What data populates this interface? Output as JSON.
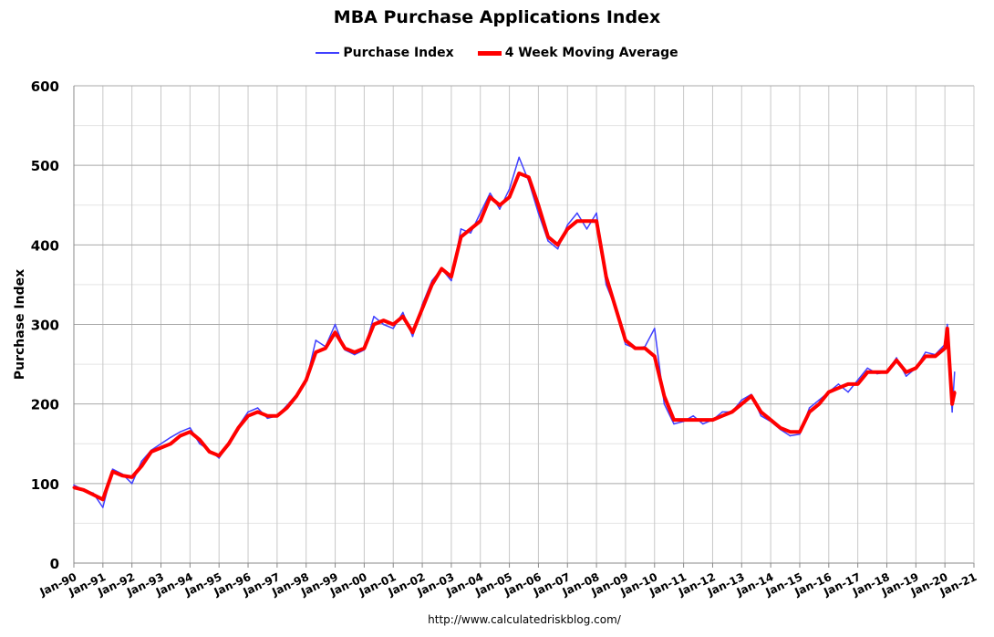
{
  "chart_data": {
    "type": "line",
    "title": "MBA Purchase Applications Index",
    "ylabel": "Purchase Index",
    "xlabel": "",
    "ylim": [
      0,
      600
    ],
    "yticks": [
      0,
      100,
      200,
      300,
      400,
      500,
      600
    ],
    "xlim": [
      "1990-01",
      "2021-01"
    ],
    "xtick_labels": [
      "Jan-90",
      "Jan-91",
      "Jan-92",
      "Jan-93",
      "Jan-94",
      "Jan-95",
      "Jan-96",
      "Jan-97",
      "Jan-98",
      "Jan-99",
      "Jan-00",
      "Jan-01",
      "Jan-02",
      "Jan-03",
      "Jan-04",
      "Jan-05",
      "Jan-06",
      "Jan-07",
      "Jan-08",
      "Jan-09",
      "Jan-10",
      "Jan-11",
      "Jan-12",
      "Jan-13",
      "Jan-14",
      "Jan-15",
      "Jan-16",
      "Jan-17",
      "Jan-18",
      "Jan-19",
      "Jan-20",
      "Jan-21"
    ],
    "grid": true,
    "legend_placement": "top",
    "x": [
      "1990-01",
      "1990-05",
      "1990-09",
      "1991-01",
      "1991-05",
      "1991-09",
      "1992-01",
      "1992-05",
      "1992-09",
      "1993-01",
      "1993-05",
      "1993-09",
      "1994-01",
      "1994-05",
      "1994-09",
      "1995-01",
      "1995-05",
      "1995-09",
      "1996-01",
      "1996-05",
      "1996-09",
      "1997-01",
      "1997-05",
      "1997-09",
      "1998-01",
      "1998-05",
      "1998-09",
      "1999-01",
      "1999-05",
      "1999-09",
      "2000-01",
      "2000-05",
      "2000-09",
      "2001-01",
      "2001-05",
      "2001-09",
      "2002-01",
      "2002-05",
      "2002-09",
      "2003-01",
      "2003-05",
      "2003-09",
      "2004-01",
      "2004-05",
      "2004-09",
      "2005-01",
      "2005-05",
      "2005-09",
      "2006-01",
      "2006-05",
      "2006-09",
      "2007-01",
      "2007-05",
      "2007-09",
      "2008-01",
      "2008-05",
      "2008-09",
      "2009-01",
      "2009-05",
      "2009-09",
      "2010-01",
      "2010-05",
      "2010-09",
      "2011-01",
      "2011-05",
      "2011-09",
      "2012-01",
      "2012-05",
      "2012-09",
      "2013-01",
      "2013-05",
      "2013-09",
      "2014-01",
      "2014-05",
      "2014-09",
      "2015-01",
      "2015-05",
      "2015-09",
      "2016-01",
      "2016-05",
      "2016-09",
      "2017-01",
      "2017-05",
      "2017-09",
      "2018-01",
      "2018-05",
      "2018-09",
      "2019-01",
      "2019-05",
      "2019-09",
      "2020-01",
      "2020-02",
      "2020-04",
      "2020-05"
    ],
    "series": [
      {
        "name": "Purchase Index",
        "color": "#4040ff",
        "values": [
          98,
          92,
          88,
          70,
          118,
          112,
          100,
          128,
          142,
          150,
          158,
          165,
          170,
          150,
          142,
          132,
          150,
          172,
          190,
          195,
          182,
          185,
          198,
          212,
          228,
          280,
          272,
          300,
          268,
          262,
          268,
          310,
          300,
          295,
          315,
          285,
          325,
          355,
          370,
          355,
          420,
          415,
          440,
          465,
          445,
          470,
          510,
          480,
          440,
          405,
          395,
          425,
          440,
          420,
          440,
          350,
          320,
          275,
          270,
          272,
          295,
          200,
          175,
          178,
          185,
          175,
          180,
          190,
          190,
          205,
          212,
          185,
          178,
          168,
          160,
          162,
          195,
          205,
          215,
          225,
          215,
          230,
          245,
          238,
          240,
          258,
          235,
          245,
          265,
          262,
          275,
          300,
          190,
          240
        ]
      },
      {
        "name": "4 Week Moving Average",
        "color": "#ff0000",
        "values": [
          95,
          92,
          86,
          80,
          115,
          110,
          108,
          122,
          140,
          145,
          150,
          160,
          165,
          155,
          140,
          135,
          150,
          170,
          185,
          190,
          185,
          185,
          195,
          210,
          230,
          265,
          270,
          290,
          270,
          265,
          270,
          300,
          305,
          300,
          310,
          290,
          320,
          350,
          370,
          360,
          410,
          420,
          430,
          460,
          450,
          460,
          490,
          485,
          450,
          410,
          400,
          420,
          430,
          430,
          430,
          360,
          320,
          280,
          270,
          270,
          260,
          210,
          180,
          180,
          180,
          180,
          180,
          185,
          190,
          200,
          210,
          190,
          180,
          170,
          165,
          165,
          190,
          200,
          215,
          220,
          225,
          225,
          240,
          240,
          240,
          255,
          240,
          245,
          260,
          260,
          270,
          295,
          200,
          215
        ]
      }
    ],
    "source": "http://www.calculatedriskblog.com/"
  }
}
